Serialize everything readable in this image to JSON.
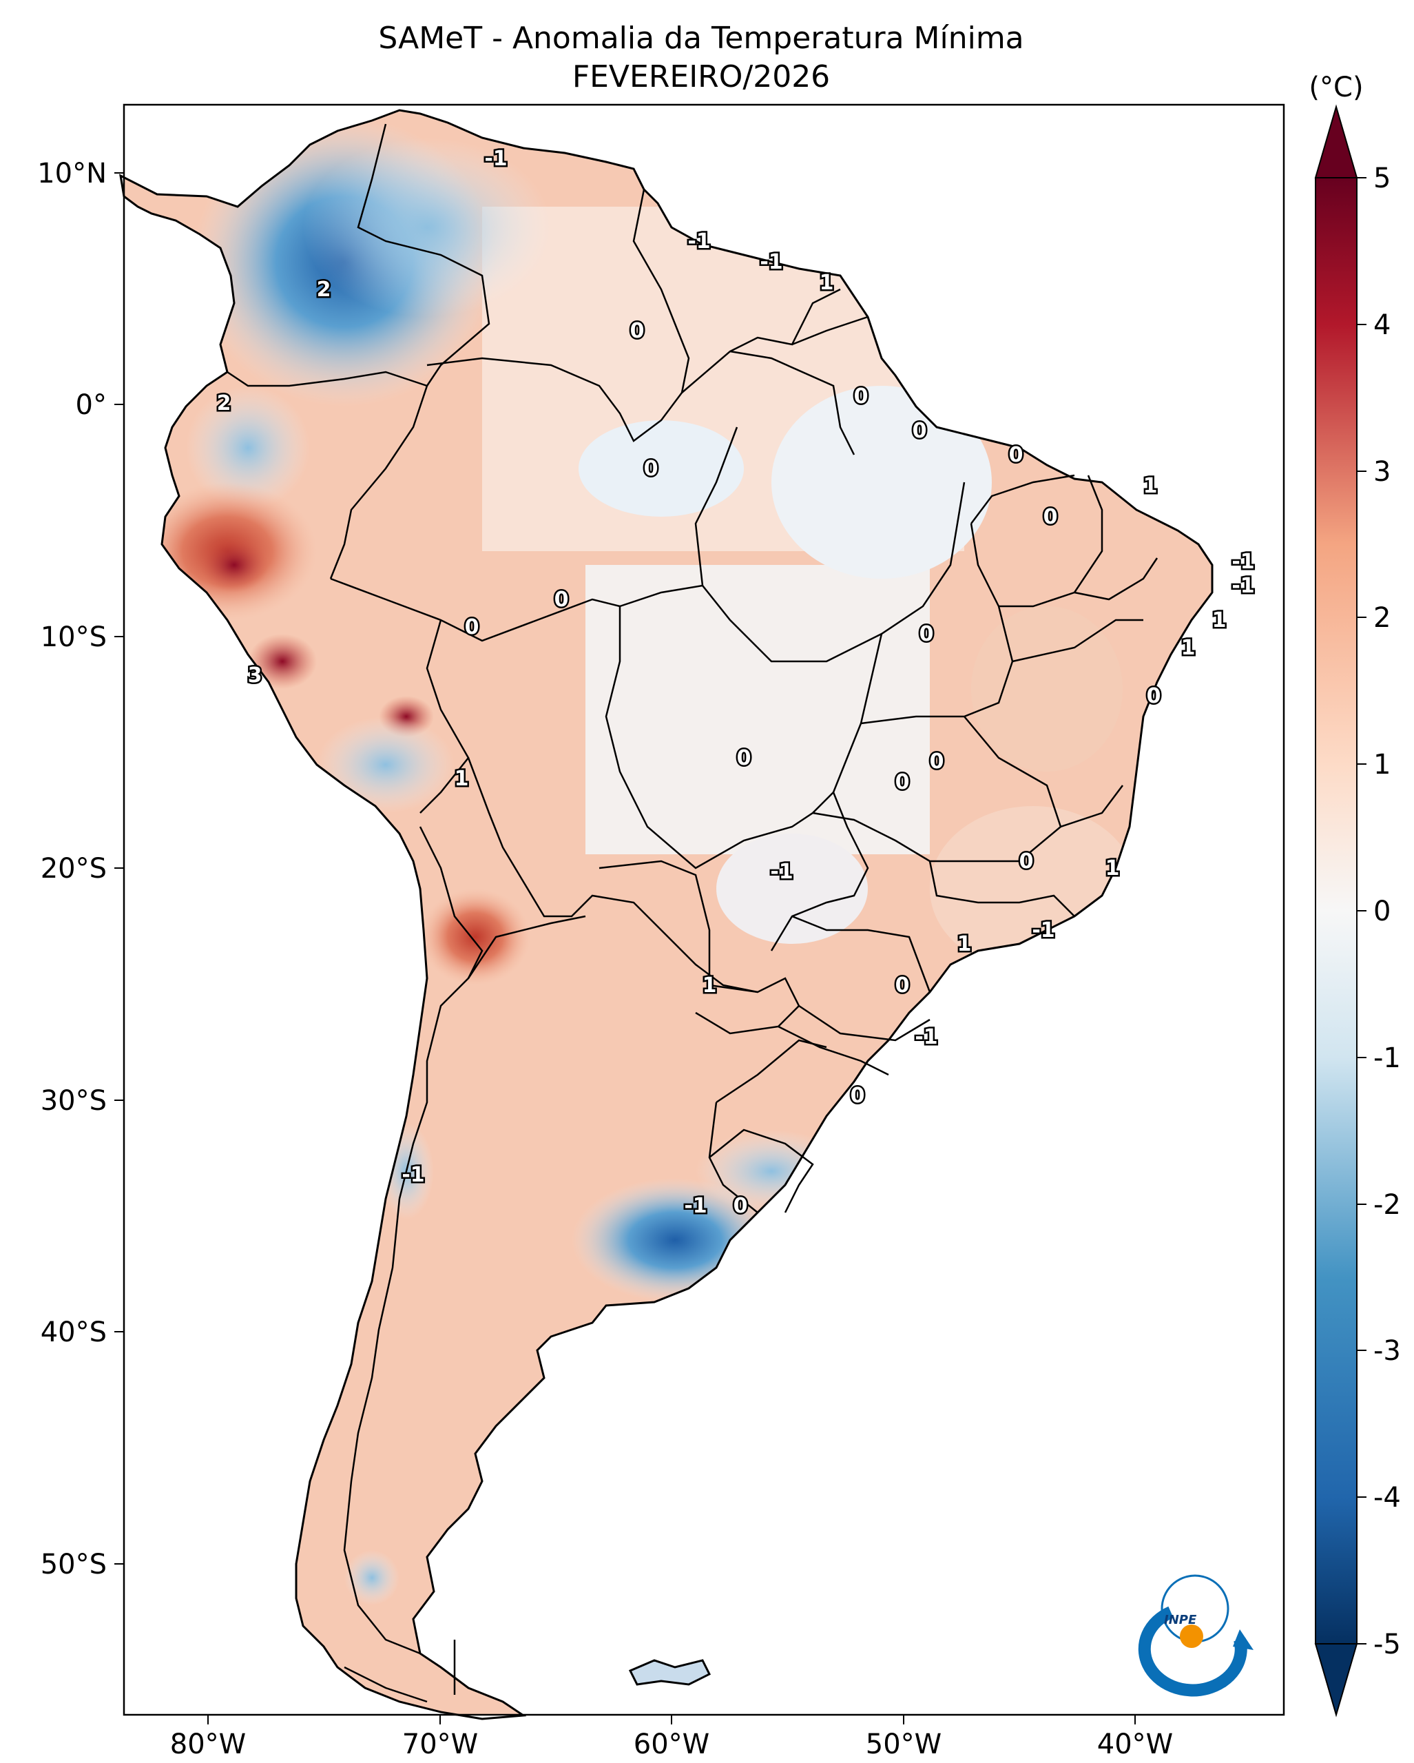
{
  "title": {
    "line1": "SAMeT - Anomalia da Temperatura Mínima",
    "line2": "FEVEREIRO/2026"
  },
  "colorbar": {
    "unit_label": "(°C)",
    "min": -5,
    "max": 5,
    "ticks": [
      "5",
      "4",
      "3",
      "2",
      "1",
      "0",
      "-1",
      "-2",
      "-3",
      "-4",
      "-5"
    ],
    "colors": {
      "max": "#67001f",
      "high": "#d6604d",
      "mid_high": "#f4a582",
      "zero": "#f7f7f7",
      "mid_low": "#92c5de",
      "low": "#4393c3",
      "min": "#053061"
    }
  },
  "map": {
    "lon_ticks": [
      "80°W",
      "70°W",
      "60°W",
      "50°W",
      "40°W"
    ],
    "lat_ticks": [
      "10°N",
      "0°",
      "10°S",
      "20°S",
      "30°S",
      "40°S",
      "50°S"
    ],
    "contour_labels": [
      "-1",
      "-1",
      "-1",
      "1",
      "2",
      "0",
      "2",
      "0",
      "0",
      "0",
      "0",
      "1",
      "0",
      "-1",
      "-1",
      "3",
      "1",
      "0",
      "0",
      "1",
      "1",
      "0",
      "0",
      "0",
      "0",
      "0",
      "-1",
      "0",
      "1",
      "-1",
      "1",
      "0",
      "1",
      "0",
      "-1",
      "0",
      "-1",
      "-1",
      "0"
    ],
    "logo_text": "INPE"
  }
}
